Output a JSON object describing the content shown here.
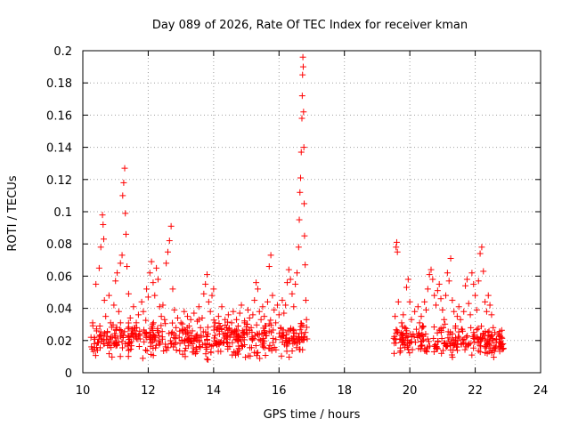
{
  "chart_data": {
    "type": "scatter",
    "title": "Day 089 of 2026, Rate Of TEC Index for receiver kman",
    "xlabel": "GPS time / hours",
    "ylabel": "ROTI / TECUs",
    "xlim": [
      10,
      24
    ],
    "ylim": [
      0,
      0.2
    ],
    "x_ticks": [
      10,
      12,
      14,
      16,
      18,
      20,
      22,
      24
    ],
    "x_tick_labels": [
      "10",
      "12",
      "14",
      "16",
      "18",
      "20",
      "22",
      "24"
    ],
    "y_ticks": [
      0,
      0.02,
      0.04,
      0.06,
      0.08,
      0.1,
      0.12,
      0.14,
      0.16,
      0.18,
      0.2
    ],
    "y_tick_labels": [
      "0",
      "0.02",
      "0.04",
      "0.06",
      "0.08",
      "0.1",
      "0.12",
      "0.14",
      "0.16",
      "0.18",
      "0.2"
    ],
    "grid": true,
    "marker": "+",
    "color": "#ff0000",
    "series": [
      {
        "name": "ROTI",
        "points": [
          [
            10.25,
            0.022
          ],
          [
            10.3,
            0.031
          ],
          [
            10.35,
            0.018
          ],
          [
            10.4,
            0.055
          ],
          [
            10.42,
            0.026
          ],
          [
            10.45,
            0.014
          ],
          [
            10.5,
            0.065
          ],
          [
            10.52,
            0.029
          ],
          [
            10.55,
            0.078
          ],
          [
            10.58,
            0.021
          ],
          [
            10.6,
            0.098
          ],
          [
            10.62,
            0.092
          ],
          [
            10.64,
            0.083
          ],
          [
            10.66,
            0.045
          ],
          [
            10.7,
            0.035
          ],
          [
            10.75,
            0.025
          ],
          [
            10.8,
            0.048
          ],
          [
            10.85,
            0.031
          ],
          [
            10.9,
            0.022
          ],
          [
            10.95,
            0.042
          ],
          [
            11.0,
            0.057
          ],
          [
            11.05,
            0.062
          ],
          [
            11.1,
            0.038
          ],
          [
            11.15,
            0.068
          ],
          [
            11.2,
            0.073
          ],
          [
            11.22,
            0.11
          ],
          [
            11.25,
            0.118
          ],
          [
            11.28,
            0.127
          ],
          [
            11.3,
            0.099
          ],
          [
            11.32,
            0.086
          ],
          [
            11.35,
            0.066
          ],
          [
            11.4,
            0.049
          ],
          [
            11.45,
            0.034
          ],
          [
            11.5,
            0.026
          ],
          [
            11.55,
            0.041
          ],
          [
            11.6,
            0.024
          ],
          [
            11.65,
            0.028
          ],
          [
            11.7,
            0.036
          ],
          [
            11.75,
            0.021
          ],
          [
            11.8,
            0.044
          ],
          [
            11.85,
            0.038
          ],
          [
            11.9,
            0.025
          ],
          [
            11.95,
            0.052
          ],
          [
            12.0,
            0.047
          ],
          [
            12.05,
            0.062
          ],
          [
            12.1,
            0.069
          ],
          [
            12.15,
            0.056
          ],
          [
            12.2,
            0.048
          ],
          [
            12.25,
            0.065
          ],
          [
            12.3,
            0.058
          ],
          [
            12.35,
            0.041
          ],
          [
            12.4,
            0.035
          ],
          [
            12.45,
            0.042
          ],
          [
            12.5,
            0.033
          ],
          [
            12.55,
            0.068
          ],
          [
            12.6,
            0.075
          ],
          [
            12.65,
            0.082
          ],
          [
            12.7,
            0.091
          ],
          [
            12.75,
            0.052
          ],
          [
            12.8,
            0.039
          ],
          [
            12.85,
            0.028
          ],
          [
            12.9,
            0.034
          ],
          [
            12.95,
            0.022
          ],
          [
            13.0,
            0.031
          ],
          [
            13.05,
            0.027
          ],
          [
            13.1,
            0.038
          ],
          [
            13.15,
            0.024
          ],
          [
            13.2,
            0.035
          ],
          [
            13.25,
            0.029
          ],
          [
            13.3,
            0.033
          ],
          [
            13.35,
            0.026
          ],
          [
            13.4,
            0.037
          ],
          [
            13.45,
            0.021
          ],
          [
            13.5,
            0.032
          ],
          [
            13.55,
            0.041
          ],
          [
            13.6,
            0.028
          ],
          [
            13.65,
            0.034
          ],
          [
            13.7,
            0.049
          ],
          [
            13.75,
            0.055
          ],
          [
            13.8,
            0.061
          ],
          [
            13.85,
            0.044
          ],
          [
            13.9,
            0.038
          ],
          [
            13.95,
            0.048
          ],
          [
            14.0,
            0.052
          ],
          [
            14.05,
            0.031
          ],
          [
            14.1,
            0.027
          ],
          [
            14.15,
            0.035
          ],
          [
            14.2,
            0.029
          ],
          [
            14.25,
            0.041
          ],
          [
            14.3,
            0.024
          ],
          [
            14.35,
            0.033
          ],
          [
            14.4,
            0.028
          ],
          [
            14.45,
            0.036
          ],
          [
            14.5,
            0.022
          ],
          [
            14.55,
            0.031
          ],
          [
            14.6,
            0.038
          ],
          [
            14.65,
            0.026
          ],
          [
            14.7,
            0.033
          ],
          [
            14.75,
            0.029
          ],
          [
            14.8,
            0.037
          ],
          [
            14.85,
            0.042
          ],
          [
            14.9,
            0.025
          ],
          [
            14.95,
            0.031
          ],
          [
            15.0,
            0.027
          ],
          [
            15.05,
            0.039
          ],
          [
            15.1,
            0.034
          ],
          [
            15.15,
            0.028
          ],
          [
            15.2,
            0.036
          ],
          [
            15.25,
            0.045
          ],
          [
            15.3,
            0.056
          ],
          [
            15.35,
            0.052
          ],
          [
            15.4,
            0.038
          ],
          [
            15.45,
            0.033
          ],
          [
            15.5,
            0.041
          ],
          [
            15.55,
            0.035
          ],
          [
            15.6,
            0.029
          ],
          [
            15.65,
            0.044
          ],
          [
            15.7,
            0.066
          ],
          [
            15.75,
            0.073
          ],
          [
            15.8,
            0.048
          ],
          [
            15.85,
            0.039
          ],
          [
            15.9,
            0.031
          ],
          [
            15.95,
            0.042
          ],
          [
            16.0,
            0.036
          ],
          [
            16.05,
            0.028
          ],
          [
            16.1,
            0.045
          ],
          [
            16.15,
            0.037
          ],
          [
            16.2,
            0.042
          ],
          [
            16.25,
            0.056
          ],
          [
            16.3,
            0.064
          ],
          [
            16.35,
            0.058
          ],
          [
            16.4,
            0.049
          ],
          [
            16.45,
            0.041
          ],
          [
            16.5,
            0.055
          ],
          [
            16.55,
            0.062
          ],
          [
            16.6,
            0.078
          ],
          [
            16.62,
            0.095
          ],
          [
            16.64,
            0.112
          ],
          [
            16.66,
            0.121
          ],
          [
            16.68,
            0.137
          ],
          [
            16.7,
            0.158
          ],
          [
            16.71,
            0.172
          ],
          [
            16.72,
            0.185
          ],
          [
            16.73,
            0.196
          ],
          [
            16.74,
            0.19
          ],
          [
            16.75,
            0.162
          ],
          [
            16.76,
            0.14
          ],
          [
            16.77,
            0.105
          ],
          [
            16.78,
            0.085
          ],
          [
            16.8,
            0.067
          ],
          [
            16.82,
            0.045
          ],
          [
            16.84,
            0.033
          ],
          [
            16.86,
            0.021
          ],
          [
            19.52,
            0.012
          ],
          [
            19.55,
            0.035
          ],
          [
            19.58,
            0.078
          ],
          [
            19.6,
            0.081
          ],
          [
            19.62,
            0.075
          ],
          [
            19.65,
            0.044
          ],
          [
            19.7,
            0.021
          ],
          [
            19.75,
            0.031
          ],
          [
            19.8,
            0.036
          ],
          [
            19.85,
            0.028
          ],
          [
            19.9,
            0.053
          ],
          [
            19.95,
            0.058
          ],
          [
            20.0,
            0.044
          ],
          [
            20.05,
            0.033
          ],
          [
            20.1,
            0.024
          ],
          [
            20.15,
            0.038
          ],
          [
            20.2,
            0.027
          ],
          [
            20.25,
            0.041
          ],
          [
            20.3,
            0.031
          ],
          [
            20.35,
            0.035
          ],
          [
            20.4,
            0.029
          ],
          [
            20.45,
            0.044
          ],
          [
            20.5,
            0.039
          ],
          [
            20.55,
            0.052
          ],
          [
            20.6,
            0.061
          ],
          [
            20.65,
            0.064
          ],
          [
            20.7,
            0.058
          ],
          [
            20.75,
            0.048
          ],
          [
            20.8,
            0.042
          ],
          [
            20.85,
            0.051
          ],
          [
            20.9,
            0.055
          ],
          [
            20.95,
            0.046
          ],
          [
            21.0,
            0.039
          ],
          [
            21.05,
            0.033
          ],
          [
            21.1,
            0.048
          ],
          [
            21.15,
            0.062
          ],
          [
            21.2,
            0.057
          ],
          [
            21.25,
            0.071
          ],
          [
            21.3,
            0.045
          ],
          [
            21.35,
            0.038
          ],
          [
            21.4,
            0.029
          ],
          [
            21.45,
            0.035
          ],
          [
            21.5,
            0.041
          ],
          [
            21.55,
            0.033
          ],
          [
            21.6,
            0.027
          ],
          [
            21.65,
            0.038
          ],
          [
            21.7,
            0.054
          ],
          [
            21.75,
            0.058
          ],
          [
            21.8,
            0.043
          ],
          [
            21.85,
            0.036
          ],
          [
            21.9,
            0.062
          ],
          [
            21.95,
            0.055
          ],
          [
            22.0,
            0.048
          ],
          [
            22.05,
            0.039
          ],
          [
            22.1,
            0.057
          ],
          [
            22.15,
            0.074
          ],
          [
            22.2,
            0.078
          ],
          [
            22.25,
            0.063
          ],
          [
            22.3,
            0.044
          ],
          [
            22.35,
            0.038
          ],
          [
            22.4,
            0.048
          ],
          [
            22.45,
            0.042
          ],
          [
            22.5,
            0.036
          ],
          [
            22.55,
            0.028
          ],
          [
            22.6,
            0.025
          ],
          [
            22.65,
            0.021
          ],
          [
            22.7,
            0.024
          ],
          [
            22.75,
            0.019
          ],
          [
            22.8,
            0.022
          ],
          [
            22.85,
            0.018
          ]
        ]
      }
    ],
    "dense_band": {
      "segments": [
        {
          "x_range": [
            10.25,
            16.88
          ],
          "y_range": [
            0.006,
            0.036
          ]
        },
        {
          "x_range": [
            19.5,
            22.9
          ],
          "y_range": [
            0.006,
            0.032
          ]
        }
      ]
    }
  }
}
